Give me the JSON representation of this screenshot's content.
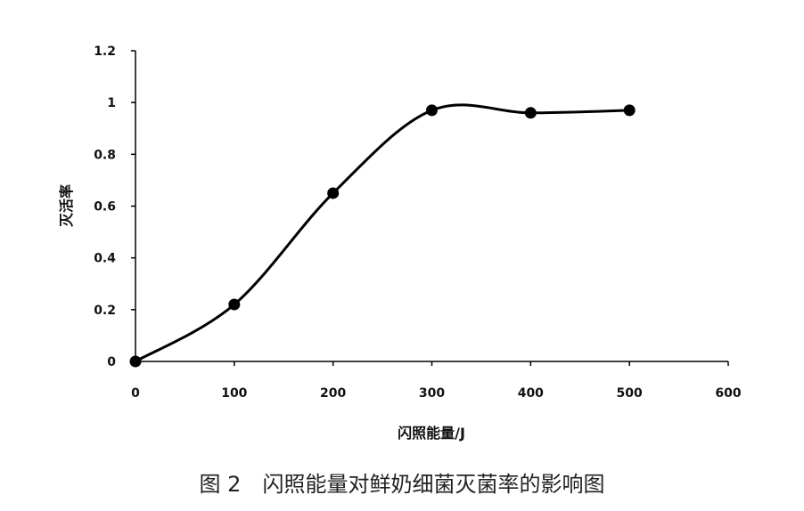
{
  "chart_data": {
    "type": "line",
    "title": "",
    "caption": "图 2　闪照能量对鲜奶细菌灭菌率的影响图",
    "xlabel": "闪照能量/J",
    "ylabel": "灭活率",
    "xlim": [
      0,
      600
    ],
    "ylim": [
      0,
      1.2
    ],
    "xticks": [
      0,
      100,
      200,
      300,
      400,
      500,
      600
    ],
    "yticks": [
      0,
      0.2,
      0.4,
      0.6,
      0.8,
      1,
      1.2
    ],
    "xtick_labels": [
      "0",
      "100",
      "200",
      "300",
      "400",
      "500",
      "600"
    ],
    "ytick_labels": [
      "0",
      "0.2",
      "0.4",
      "0.6",
      "0.8",
      "1",
      "1.2"
    ],
    "grid": false,
    "smooth": true,
    "marker": "filled-circle",
    "line_color": "#000000",
    "series": [
      {
        "x": [
          0,
          100,
          200,
          300,
          400,
          500
        ],
        "y": [
          0,
          0.22,
          0.65,
          0.97,
          0.96,
          0.97
        ]
      }
    ]
  }
}
